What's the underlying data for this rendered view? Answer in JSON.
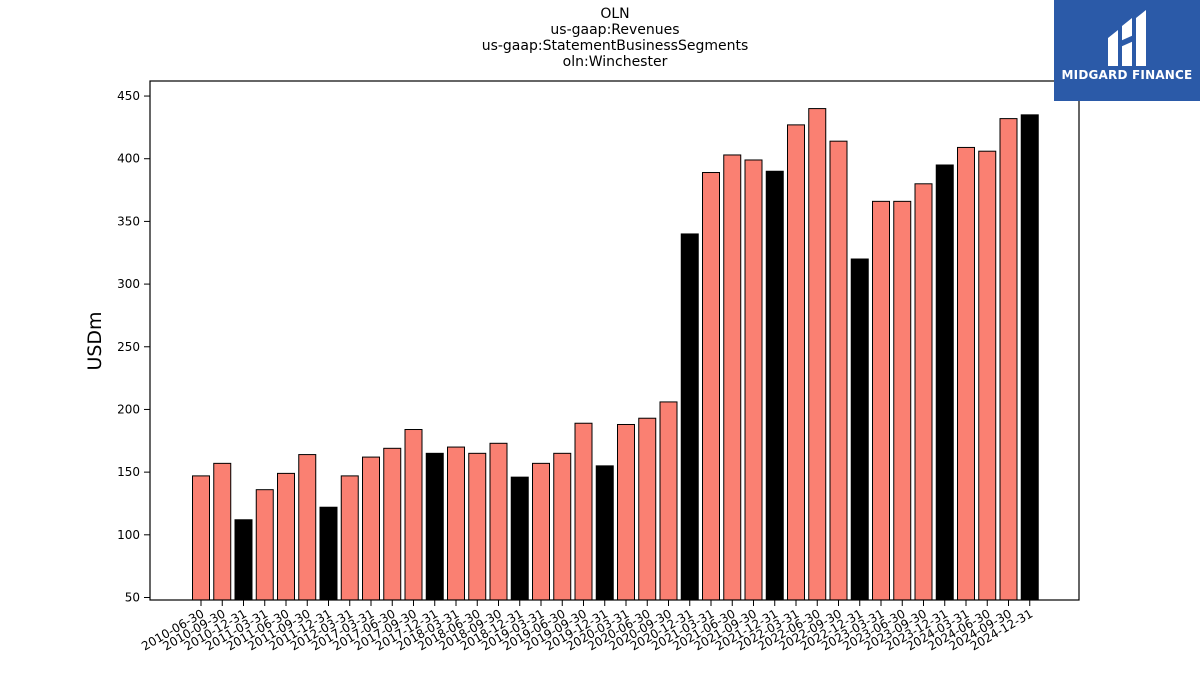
{
  "chart_data": {
    "type": "bar",
    "title_lines": [
      "OLN",
      "us-gaap:Revenues",
      "us-gaap:StatementBusinessSegments",
      "oln:Winchester"
    ],
    "xlabel": "",
    "ylabel": "USDm",
    "ylim": [
      48,
      462
    ],
    "yticks": [
      50,
      100,
      150,
      200,
      250,
      300,
      350,
      400,
      450
    ],
    "grid": false,
    "colors": {
      "quarter": "#fa8072",
      "year_end": "#000000",
      "edge": "#000000"
    },
    "categories": [
      "2010-06-30",
      "2010-09-30",
      "2010-12-31",
      "2011-03-31",
      "2011-06-30",
      "2011-09-30",
      "2011-12-31",
      "2012-03-31",
      "2017-03-31",
      "2017-06-30",
      "2017-09-30",
      "2017-12-31",
      "2018-03-31",
      "2018-06-30",
      "2018-09-30",
      "2018-12-31",
      "2019-03-31",
      "2019-06-30",
      "2019-09-30",
      "2019-12-31",
      "2020-03-31",
      "2020-06-30",
      "2020-09-30",
      "2020-12-31",
      "2021-03-31",
      "2021-06-30",
      "2021-09-30",
      "2021-12-31",
      "2022-03-31",
      "2022-06-30",
      "2022-09-30",
      "2022-12-31",
      "2023-03-31",
      "2023-06-30",
      "2023-09-30",
      "2023-12-31",
      "2024-03-31",
      "2024-06-30",
      "2024-09-30",
      "2024-12-31"
    ],
    "values": [
      147,
      157,
      112,
      136,
      149,
      164,
      122,
      147,
      162,
      169,
      184,
      165,
      170,
      165,
      173,
      146,
      157,
      165,
      189,
      155,
      188,
      193,
      206,
      340,
      389,
      403,
      399,
      390,
      427,
      440,
      414,
      320,
      366,
      366,
      380,
      395,
      409,
      406,
      432,
      435
    ],
    "year_end_flags": [
      false,
      false,
      true,
      false,
      false,
      false,
      true,
      false,
      false,
      false,
      false,
      true,
      false,
      false,
      false,
      true,
      false,
      false,
      false,
      true,
      false,
      false,
      false,
      true,
      false,
      false,
      false,
      true,
      false,
      false,
      false,
      true,
      false,
      false,
      false,
      true,
      false,
      false,
      false,
      true
    ]
  },
  "brand": {
    "name": "MIDGARD FINANCE",
    "logo_icon": "midgard-logo-icon",
    "bg_color": "#2b5aa8"
  }
}
